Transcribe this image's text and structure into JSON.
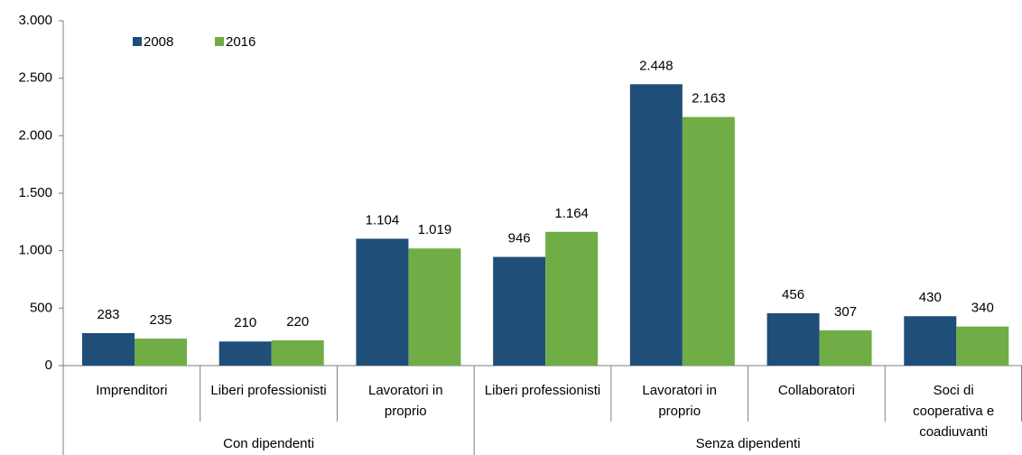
{
  "chart_data": {
    "type": "bar",
    "categories": [
      "Imprenditori",
      "Liberi professionisti",
      "Lavoratori in proprio",
      "Liberi professionisti",
      "Lavoratori in proprio",
      "Collaboratori",
      "Soci di cooperativa e coadiuvanti"
    ],
    "groups": [
      {
        "name": "Con dipendenti",
        "count": 3
      },
      {
        "name": "Senza dipendenti",
        "count": 4
      }
    ],
    "series": [
      {
        "name": "2008",
        "color": "#1f4e79",
        "values": [
          283,
          210,
          1104,
          946,
          2448,
          456,
          430
        ],
        "value_labels": [
          "283",
          "210",
          "1.104",
          "946",
          "2.448",
          "456",
          "430"
        ]
      },
      {
        "name": "2016",
        "color": "#70ad47",
        "values": [
          235,
          220,
          1019,
          1164,
          2163,
          307,
          340
        ],
        "value_labels": [
          "235",
          "220",
          "1.019",
          "1.164",
          "2.163",
          "307",
          "340"
        ]
      }
    ],
    "ylim": [
      0,
      3000
    ],
    "yticks": [
      0,
      500,
      {
        "value": 1000,
        "label": "1.000"
      },
      {
        "value": 1500,
        "label": "1.500"
      },
      {
        "value": 2000,
        "label": "2.000"
      },
      {
        "value": 2500,
        "label": "2.500"
      },
      {
        "value": 3000,
        "label": "3.000"
      }
    ],
    "grid": false,
    "legend": "top-left"
  }
}
